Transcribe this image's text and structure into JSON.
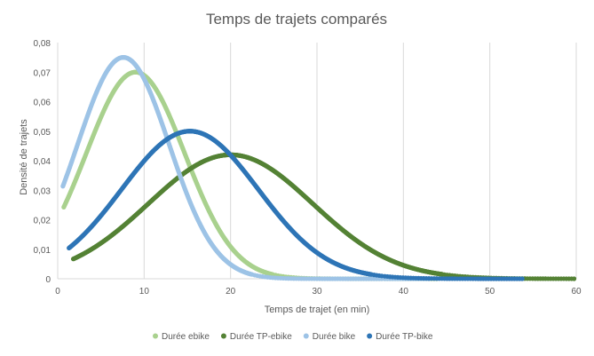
{
  "chart_data": {
    "type": "scatter",
    "title": "Temps de trajets comparés",
    "xlabel": "Temps de trajet (en min)",
    "ylabel": "Densité de trajets",
    "xlim": [
      0,
      60
    ],
    "ylim": [
      0,
      0.08
    ],
    "x_ticks": [
      "0",
      "10",
      "20",
      "30",
      "40",
      "50",
      "60"
    ],
    "y_ticks": [
      "0",
      "0,01",
      "0,02",
      "0,03",
      "0,04",
      "0,05",
      "0,06",
      "0,07",
      "0,08"
    ],
    "grid": "vertical",
    "legend_position": "bottom",
    "series": [
      {
        "name": "Durée ebike",
        "color": "#a9d18e",
        "distribution": {
          "mean": 9,
          "sd": 5.7,
          "peak": 0.07
        },
        "x_range": [
          0.7,
          44
        ]
      },
      {
        "name": "Durée TP-ebike",
        "color": "#548235",
        "distribution": {
          "mean": 20,
          "sd": 9.5,
          "peak": 0.042
        },
        "x_range": [
          1.8,
          60
        ]
      },
      {
        "name": "Durée bike",
        "color": "#9dc3e6",
        "distribution": {
          "mean": 7.6,
          "sd": 5.3,
          "peak": 0.075
        },
        "x_range": [
          0.6,
          43
        ]
      },
      {
        "name": "Durée TP-bike",
        "color": "#2e75b6",
        "distribution": {
          "mean": 15.3,
          "sd": 7.9,
          "peak": 0.05
        },
        "x_range": [
          1.3,
          54
        ]
      }
    ]
  }
}
